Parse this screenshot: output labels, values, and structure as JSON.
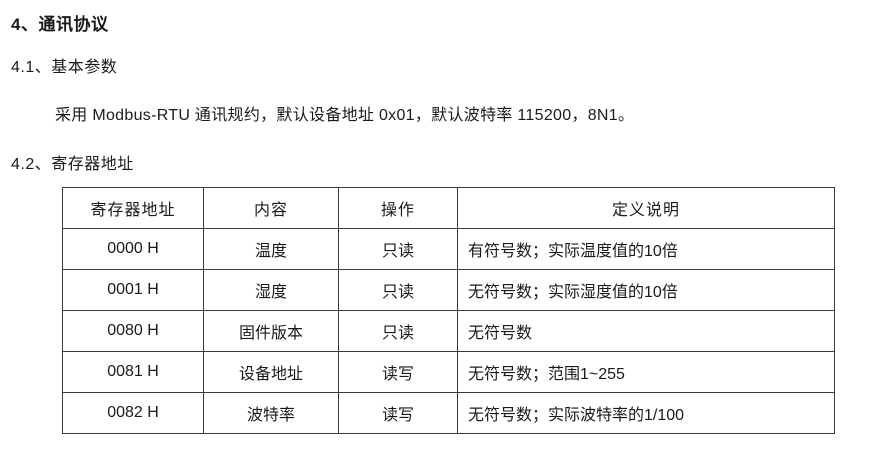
{
  "page": {
    "heading": "4、通讯协议",
    "section1": "4.1、基本参数",
    "paragraph": "采用 Modbus-RTU 通讯规约，默认设备地址 0x01，默认波特率 115200，8N1。",
    "section2": "4.2、寄存器地址"
  },
  "table": {
    "headers": [
      "寄存器地址",
      "内容",
      "操作",
      "定义说明"
    ],
    "rows": [
      [
        "0000 H",
        "温度",
        "只读",
        "有符号数；实际温度值的10倍"
      ],
      [
        "0001 H",
        "湿度",
        "只读",
        "无符号数；实际湿度值的10倍"
      ],
      [
        "0080 H",
        "固件版本",
        "只读",
        "无符号数"
      ],
      [
        "0081 H",
        "设备地址",
        "读写",
        "无符号数；范围1~255"
      ],
      [
        "0082 H",
        "波特率",
        "读写",
        "无符号数；实际波特率的1/100"
      ]
    ]
  },
  "colors": {
    "text": "#1a1a1a",
    "border": "#3a3a3a",
    "background": "#ffffff"
  }
}
